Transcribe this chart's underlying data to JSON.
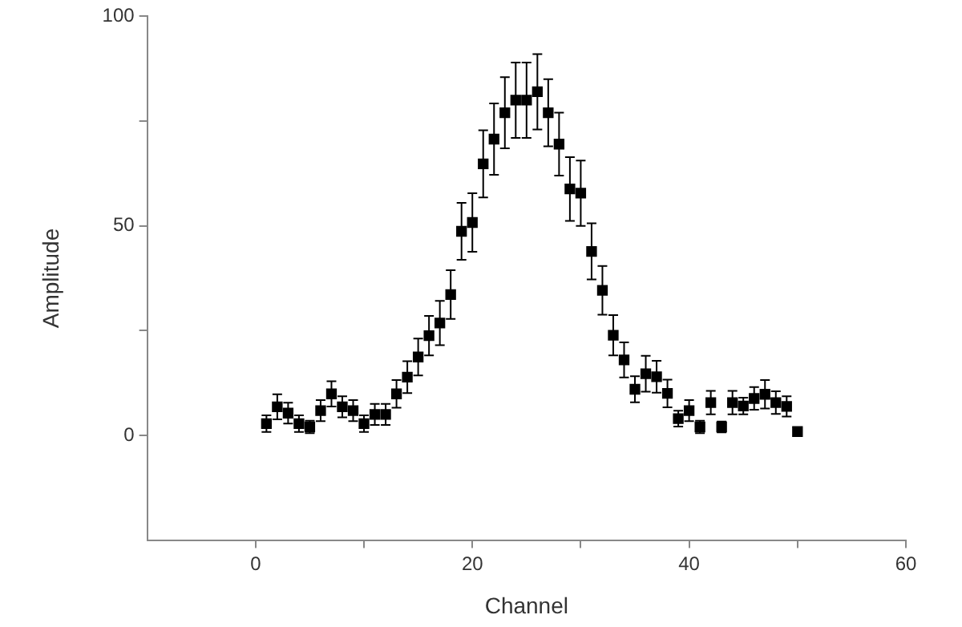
{
  "chart_data": {
    "type": "scatter",
    "xlabel": "Channel",
    "ylabel": "Amplitude",
    "x": [
      1,
      2,
      3,
      4,
      5,
      6,
      7,
      8,
      9,
      10,
      11,
      12,
      13,
      14,
      15,
      16,
      17,
      18,
      19,
      20,
      21,
      22,
      23,
      24,
      25,
      26,
      27,
      28,
      29,
      30,
      31,
      32,
      33,
      34,
      35,
      36,
      37,
      38,
      39,
      40,
      41,
      42,
      43,
      44,
      45,
      46,
      47,
      48,
      49,
      50
    ],
    "series": [
      {
        "color": "#000000",
        "values": [
          2.8,
          6.8,
          5.3,
          2.8,
          2,
          5.9,
          9.9,
          6.8,
          5.9,
          2.8,
          5,
          5,
          9.9,
          13.9,
          18.7,
          23.8,
          26.8,
          33.6,
          48.7,
          50.8,
          64.8,
          70.7,
          77,
          80,
          80,
          82,
          77,
          69.5,
          58.8,
          57.8,
          43.9,
          34.6,
          23.9,
          18,
          11,
          14.7,
          14,
          10,
          4,
          5.9,
          2,
          7.8,
          2,
          7.8,
          7,
          8.8,
          9.8,
          7.8,
          6.9,
          0.9
        ],
        "errors": [
          2,
          3,
          2.5,
          2,
          1.5,
          2.5,
          3,
          2.5,
          2.5,
          2,
          2.5,
          2.5,
          3.3,
          3.8,
          4.4,
          4.7,
          5.3,
          5.8,
          6.8,
          7,
          8,
          8.5,
          8.5,
          9,
          9,
          9,
          8,
          7.5,
          7.6,
          7.8,
          6.7,
          5.8,
          4.8,
          4.2,
          3.1,
          4.3,
          3.8,
          3.3,
          1.9,
          2.5,
          1.5,
          2.8,
          1.3,
          2.8,
          2,
          2.7,
          3.4,
          2.7,
          2.4,
          1
        ]
      }
    ],
    "xlim": [
      -10,
      60
    ],
    "xticks": [
      0,
      {
        "value": 10,
        "label": null
      },
      20,
      {
        "value": 30,
        "label": null
      },
      40,
      {
        "value": 50,
        "label": null
      },
      60
    ],
    "ylim": [
      -25,
      100
    ],
    "yticks": [
      0,
      {
        "value": 25,
        "label": null
      },
      50,
      {
        "value": 75,
        "label": null
      },
      100
    ],
    "grid": false,
    "legend": false,
    "marker": "square"
  }
}
